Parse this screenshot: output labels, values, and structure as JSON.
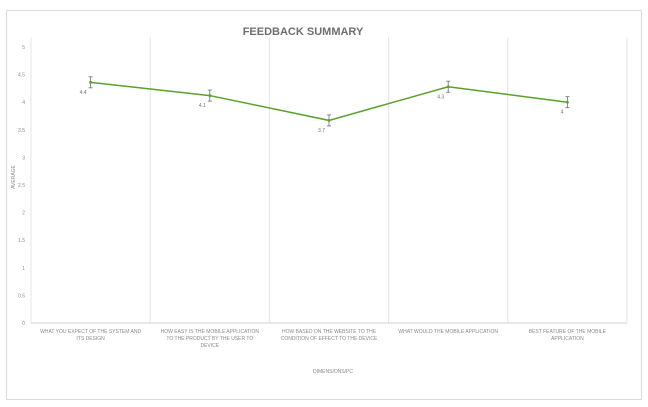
{
  "chart_data": {
    "type": "line",
    "title": "FEEDBACK SUMMARY",
    "xlabel": "DIMENSIONS/PC",
    "ylabel": "AVERAGE",
    "ylim": [
      0,
      5
    ],
    "y_ticks": [
      "0",
      "0.5",
      "1",
      "1.5",
      "2",
      "2.5",
      "3",
      "3.5",
      "4",
      "4.5",
      "5"
    ],
    "grid": "vertical category separators",
    "categories": [
      "WHAT YOU EXPECT OF THE SYSTEM AND ITS DESIGN",
      "HOW EASY IS THE MOBILE APPLICATION TO THE PRODUCT BY THE USER TO DEVICE",
      "HOW BASED ON THE WEBSITE TO THE CONDITION OF EFFECT TO THE DEVICE",
      "WHAT WOULD THE MOBILE APPLICATION",
      "BEST FEATURE OF THE MOBILE APPLICATION"
    ],
    "series": [
      {
        "values": [
          4.36,
          4.12,
          3.67,
          4.28,
          4.0
        ],
        "error": [
          0.1,
          0.1,
          0.1,
          0.1,
          0.1
        ],
        "data_labels": [
          "4.4",
          "4.1",
          "3.7",
          "4.3",
          "4"
        ],
        "color": "#5aa02c"
      }
    ]
  }
}
